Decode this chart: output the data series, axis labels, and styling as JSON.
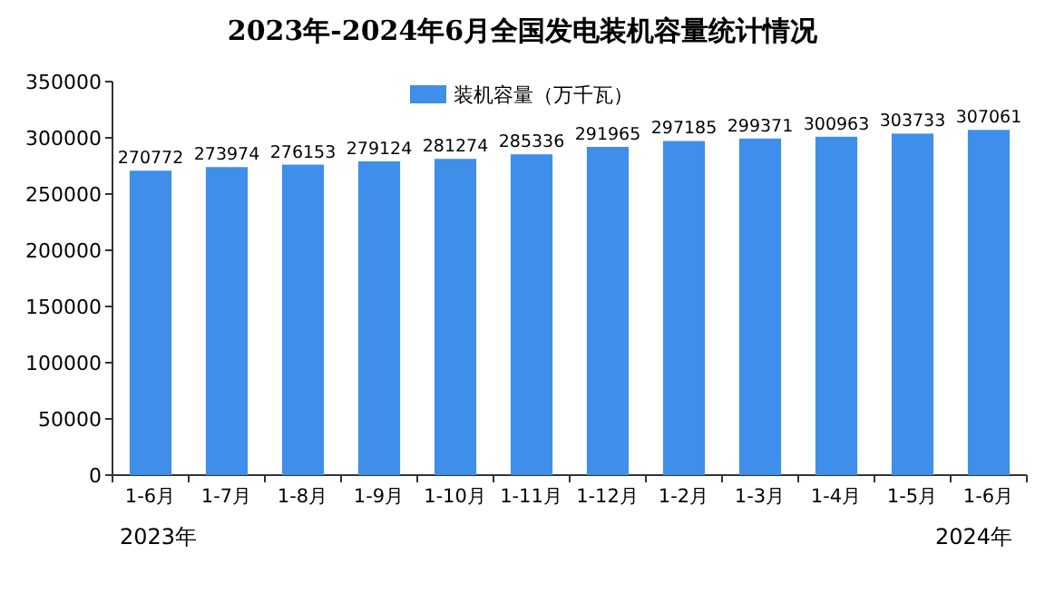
{
  "chart_data": {
    "type": "bar",
    "title": "2023年-2024年6月全国发电装机容量统计情况",
    "categories": [
      "1-6月",
      "1-7月",
      "1-8月",
      "1-9月",
      "1-10月",
      "1-11月",
      "1-12月",
      "1-2月",
      "1-3月",
      "1-4月",
      "1-5月",
      "1-6月"
    ],
    "series": [
      {
        "name": "装机容量（万千瓦）",
        "color": "#3f8fea",
        "values": [
          270772,
          273974,
          276153,
          279124,
          281274,
          285336,
          291965,
          297185,
          299371,
          300963,
          303733,
          307061
        ]
      }
    ],
    "ylim": [
      0,
      350000
    ],
    "yticks": [
      0,
      50000,
      100000,
      150000,
      200000,
      250000,
      300000,
      350000
    ],
    "data_labels": true,
    "legend": "top",
    "grid": false,
    "annotations": [
      "2023年",
      "2024年"
    ]
  }
}
